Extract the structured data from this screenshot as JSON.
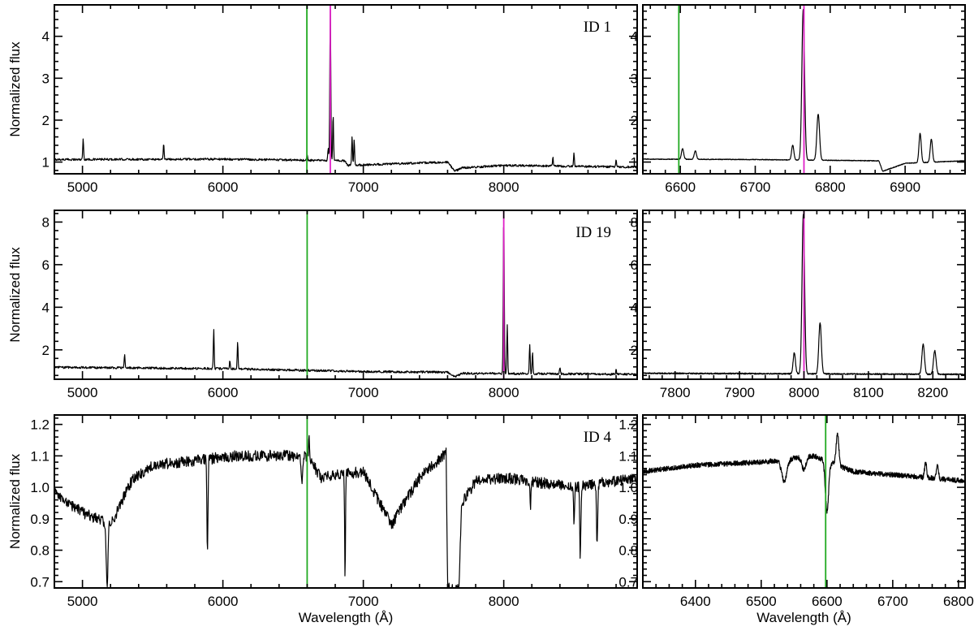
{
  "colors": {
    "spectrum": "#000000",
    "halpha_line": "#22aa22",
    "redshifted_line": "#e020c8"
  },
  "chart_data": [
    {
      "type": "line",
      "label": "ID 1",
      "ylabel": "Normalized flux",
      "xlabel": "",
      "xlim": [
        4800,
        8950
      ],
      "ylim": [
        0.72,
        4.75
      ],
      "xticks": [
        5000,
        6000,
        7000,
        8000
      ],
      "yticks": [
        1,
        2,
        3,
        4
      ],
      "vlines": [
        {
          "x": 6598,
          "color": "green"
        },
        {
          "x": 6765,
          "color": "magenta"
        }
      ],
      "spectrum": {
        "cont": [
          [
            4800,
            1.06
          ],
          [
            6000,
            1.07
          ],
          [
            6870,
            1.03
          ],
          [
            6890,
            0.92
          ],
          [
            7600,
            1.0
          ],
          [
            7650,
            0.78
          ],
          [
            7700,
            0.86
          ],
          [
            8000,
            0.92
          ],
          [
            8950,
            0.88
          ]
        ],
        "noise": 0.025,
        "lines": [
          {
            "x": 5005,
            "a": 0.5,
            "s": 3
          },
          {
            "x": 5578,
            "a": 0.38,
            "s": 3
          },
          {
            "x": 6600,
            "a": 0.15,
            "s": 3
          },
          {
            "x": 6750,
            "a": 0.3,
            "s": 3
          },
          {
            "x": 6765,
            "a": 3.6,
            "s": 3.5
          },
          {
            "x": 6785,
            "a": 1.1,
            "s": 3
          },
          {
            "x": 6920,
            "a": 0.7,
            "s": 3
          },
          {
            "x": 6935,
            "a": 0.6,
            "s": 3
          },
          {
            "x": 8350,
            "a": 0.2,
            "s": 3
          },
          {
            "x": 8500,
            "a": 0.3,
            "s": 3
          },
          {
            "x": 8800,
            "a": 0.15,
            "s": 3
          }
        ]
      }
    },
    {
      "type": "line",
      "label": "",
      "ylabel": "",
      "xlabel": "",
      "xlim": [
        6550,
        6980
      ],
      "ylim": [
        0.72,
        4.75
      ],
      "xticks": [
        6600,
        6700,
        6800,
        6900
      ],
      "yticks": [
        1,
        2,
        3,
        4
      ],
      "vlines": [
        {
          "x": 6598,
          "color": "green"
        },
        {
          "x": 6765,
          "color": "magenta"
        }
      ],
      "spectrum": {
        "cont": [
          [
            6550,
            1.07
          ],
          [
            6700,
            1.06
          ],
          [
            6865,
            1.03
          ],
          [
            6870,
            0.78
          ],
          [
            6900,
            0.97
          ],
          [
            6980,
            1.03
          ]
        ],
        "noise": 0.008,
        "lines": [
          {
            "x": 6603,
            "a": 0.25,
            "s": 1.5
          },
          {
            "x": 6620,
            "a": 0.2,
            "s": 1.5
          },
          {
            "x": 6750,
            "a": 0.35,
            "s": 1.5
          },
          {
            "x": 6764,
            "a": 3.6,
            "s": 1.8
          },
          {
            "x": 6784,
            "a": 1.1,
            "s": 1.8
          },
          {
            "x": 6920,
            "a": 0.7,
            "s": 1.5
          },
          {
            "x": 6935,
            "a": 0.55,
            "s": 1.5
          }
        ]
      }
    },
    {
      "type": "line",
      "label": "ID 19",
      "ylabel": "Normalized flux",
      "xlabel": "",
      "xlim": [
        4800,
        8950
      ],
      "ylim": [
        0.62,
        8.55
      ],
      "xticks": [
        5000,
        6000,
        7000,
        8000
      ],
      "yticks": [
        2,
        4,
        6,
        8
      ],
      "vlines": [
        {
          "x": 6600,
          "color": "green"
        },
        {
          "x": 8000,
          "color": "magenta"
        }
      ],
      "spectrum": {
        "cont": [
          [
            4800,
            1.18
          ],
          [
            6000,
            1.12
          ],
          [
            7000,
            0.98
          ],
          [
            7600,
            0.95
          ],
          [
            7650,
            0.72
          ],
          [
            7700,
            0.9
          ],
          [
            8950,
            0.85
          ]
        ],
        "noise": 0.05,
        "lines": [
          {
            "x": 5300,
            "a": 0.6,
            "s": 3
          },
          {
            "x": 5935,
            "a": 1.8,
            "s": 3
          },
          {
            "x": 6050,
            "a": 0.4,
            "s": 3
          },
          {
            "x": 6105,
            "a": 1.3,
            "s": 3
          },
          {
            "x": 8000,
            "a": 7.5,
            "s": 3.5
          },
          {
            "x": 8025,
            "a": 2.3,
            "s": 3
          },
          {
            "x": 8185,
            "a": 1.4,
            "s": 3
          },
          {
            "x": 8205,
            "a": 1.0,
            "s": 3
          },
          {
            "x": 8400,
            "a": 0.3,
            "s": 3
          },
          {
            "x": 8800,
            "a": 0.2,
            "s": 3
          }
        ]
      }
    },
    {
      "type": "line",
      "label": "",
      "ylabel": "",
      "xlabel": "",
      "xlim": [
        7750,
        8250
      ],
      "ylim": [
        0.62,
        8.55
      ],
      "xticks": [
        7800,
        7900,
        8000,
        8100,
        8200
      ],
      "yticks": [
        2,
        4,
        6,
        8
      ],
      "vlines": [
        {
          "x": 8000,
          "color": "magenta"
        }
      ],
      "spectrum": {
        "cont": [
          [
            7750,
            0.9
          ],
          [
            8250,
            0.85
          ]
        ],
        "noise": 0.03,
        "lines": [
          {
            "x": 7985,
            "a": 1.0,
            "s": 1.8
          },
          {
            "x": 7999,
            "a": 7.5,
            "s": 2.0
          },
          {
            "x": 8025,
            "a": 2.4,
            "s": 2.0
          },
          {
            "x": 8185,
            "a": 1.4,
            "s": 2.0
          },
          {
            "x": 8203,
            "a": 1.1,
            "s": 2.0
          }
        ]
      }
    },
    {
      "type": "line",
      "label": "ID 4",
      "ylabel": "Normalized flux",
      "xlabel": "Wavelength (Å)",
      "xlim": [
        4800,
        8950
      ],
      "ylim": [
        0.68,
        1.23
      ],
      "xticks": [
        5000,
        6000,
        7000,
        8000
      ],
      "yticks": [
        0.7,
        0.8,
        0.9,
        1.0,
        1.1,
        1.2
      ],
      "vlines": [
        {
          "x": 6600,
          "color": "green"
        }
      ],
      "spectrum": {
        "cont": [
          [
            4800,
            0.98
          ],
          [
            5000,
            0.92
          ],
          [
            5200,
            0.88
          ],
          [
            5350,
            1.02
          ],
          [
            5500,
            1.07
          ],
          [
            6100,
            1.1
          ],
          [
            6600,
            1.1
          ],
          [
            6700,
            1.03
          ],
          [
            7000,
            1.05
          ],
          [
            7200,
            0.88
          ],
          [
            7400,
            1.03
          ],
          [
            7590,
            1.11
          ],
          [
            7600,
            0.68
          ],
          [
            7680,
            0.68
          ],
          [
            7700,
            0.95
          ],
          [
            7800,
            1.02
          ],
          [
            8000,
            1.03
          ],
          [
            8500,
            1.0
          ],
          [
            8950,
            1.03
          ]
        ],
        "noise": 0.018,
        "lines": [
          {
            "x": 5175,
            "a": -0.2,
            "s": 6
          },
          {
            "x": 5890,
            "a": -0.3,
            "s": 4
          },
          {
            "x": 6563,
            "a": -0.08,
            "s": 5
          },
          {
            "x": 6614,
            "a": 0.08,
            "s": 3
          },
          {
            "x": 6870,
            "a": -0.35,
            "s": 3
          },
          {
            "x": 8190,
            "a": -0.1,
            "s": 3
          },
          {
            "x": 8500,
            "a": -0.1,
            "s": 4
          },
          {
            "x": 8545,
            "a": -0.22,
            "s": 4
          },
          {
            "x": 8665,
            "a": -0.2,
            "s": 4
          }
        ]
      }
    },
    {
      "type": "line",
      "label": "",
      "ylabel": "",
      "xlabel": "Wavelength (Å)",
      "xlim": [
        6320,
        6810
      ],
      "ylim": [
        0.68,
        1.23
      ],
      "xticks": [
        6400,
        6500,
        6600,
        6700,
        6800
      ],
      "yticks": [
        0.7,
        0.8,
        0.9,
        1.0,
        1.1,
        1.2
      ],
      "vlines": [
        {
          "x": 6598,
          "color": "green"
        }
      ],
      "spectrum": {
        "cont": [
          [
            6320,
            1.05
          ],
          [
            6400,
            1.07
          ],
          [
            6500,
            1.08
          ],
          [
            6580,
            1.1
          ],
          [
            6640,
            1.05
          ],
          [
            6700,
            1.04
          ],
          [
            6810,
            1.02
          ]
        ],
        "noise": 0.008,
        "lines": [
          {
            "x": 6535,
            "a": -0.07,
            "s": 4
          },
          {
            "x": 6565,
            "a": -0.04,
            "s": 3
          },
          {
            "x": 6600,
            "a": -0.16,
            "s": 2.5
          },
          {
            "x": 6616,
            "a": 0.1,
            "s": 2
          },
          {
            "x": 6750,
            "a": 0.05,
            "s": 1.5
          },
          {
            "x": 6768,
            "a": 0.04,
            "s": 1.5
          }
        ]
      }
    }
  ]
}
